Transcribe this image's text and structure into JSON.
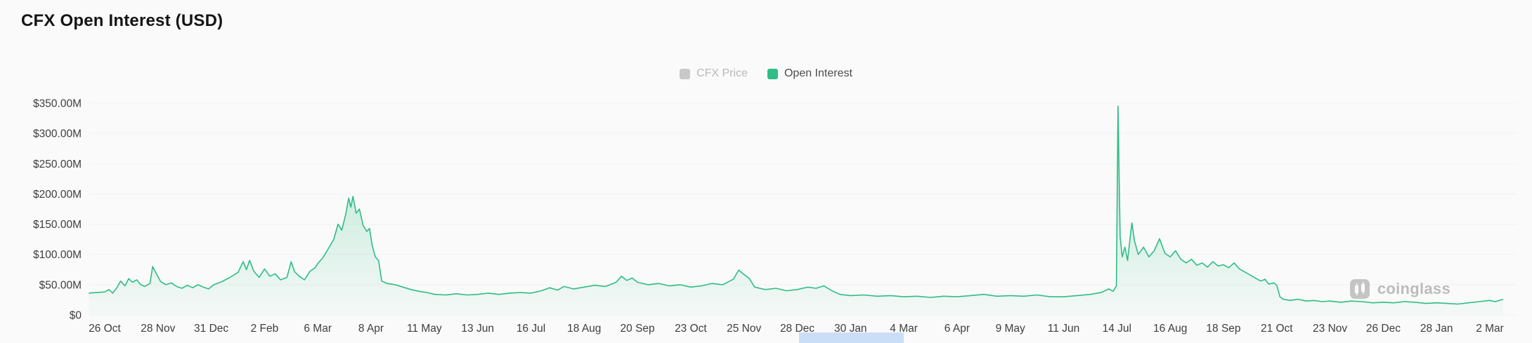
{
  "page": {
    "title": "CFX Open Interest (USD)"
  },
  "legend": {
    "items": [
      {
        "label": "CFX Price",
        "color": "#c9c9c9",
        "text_color": "#b9b9b9",
        "active": false
      },
      {
        "label": "Open Interest",
        "color": "#2ebd85",
        "text_color": "#4d4d4d",
        "active": true
      }
    ]
  },
  "watermark": {
    "label": "coinglass"
  },
  "chart_data": {
    "type": "area",
    "title": "CFX Open Interest (USD)",
    "xlabel": "",
    "ylabel": "Open Interest (USD)",
    "ylim": [
      0,
      350
    ],
    "grid": false,
    "legend_position": "top-center",
    "legend_entries": [
      "CFX Price",
      "Open Interest"
    ],
    "y_ticks": [
      "$350.00M",
      "$300.00M",
      "$250.00M",
      "$200.00M",
      "$150.00M",
      "$100.00M",
      "$50.00M",
      "$0"
    ],
    "y_tick_values": [
      350,
      300,
      250,
      200,
      150,
      100,
      50,
      0
    ],
    "categories": [
      "26 Oct",
      "28 Nov",
      "31 Dec",
      "2 Feb",
      "6 Mar",
      "8 Apr",
      "11 May",
      "13 Jun",
      "16 Jul",
      "18 Aug",
      "20 Sep",
      "23 Oct",
      "25 Nov",
      "28 Dec",
      "30 Jan",
      "4 Mar",
      "6 Apr",
      "9 May",
      "11 Jun",
      "14 Jul",
      "16 Aug",
      "18 Sep",
      "21 Oct",
      "23 Nov",
      "26 Dec",
      "28 Jan",
      "2 Mar"
    ],
    "x_unit": "tick_index",
    "value_unit": "USD millions",
    "series": [
      {
        "name": "Open Interest",
        "color": "#2ebd85",
        "points": [
          [
            -0.3,
            36
          ],
          [
            0,
            38
          ],
          [
            0.08,
            42
          ],
          [
            0.15,
            36
          ],
          [
            0.22,
            44
          ],
          [
            0.3,
            56
          ],
          [
            0.38,
            48
          ],
          [
            0.45,
            60
          ],
          [
            0.52,
            54
          ],
          [
            0.6,
            58
          ],
          [
            0.68,
            50
          ],
          [
            0.75,
            47
          ],
          [
            0.85,
            52
          ],
          [
            0.9,
            80
          ],
          [
            0.97,
            68
          ],
          [
            1.05,
            55
          ],
          [
            1.15,
            50
          ],
          [
            1.25,
            53
          ],
          [
            1.35,
            47
          ],
          [
            1.45,
            44
          ],
          [
            1.55,
            49
          ],
          [
            1.65,
            45
          ],
          [
            1.75,
            50
          ],
          [
            1.85,
            46
          ],
          [
            1.95,
            43
          ],
          [
            2.05,
            50
          ],
          [
            2.2,
            55
          ],
          [
            2.35,
            62
          ],
          [
            2.5,
            70
          ],
          [
            2.6,
            88
          ],
          [
            2.66,
            75
          ],
          [
            2.72,
            90
          ],
          [
            2.8,
            72
          ],
          [
            2.9,
            62
          ],
          [
            3,
            76
          ],
          [
            3.1,
            64
          ],
          [
            3.2,
            68
          ],
          [
            3.3,
            58
          ],
          [
            3.42,
            62
          ],
          [
            3.5,
            88
          ],
          [
            3.56,
            72
          ],
          [
            3.65,
            64
          ],
          [
            3.75,
            58
          ],
          [
            3.85,
            72
          ],
          [
            3.95,
            78
          ],
          [
            4,
            85
          ],
          [
            4.1,
            95
          ],
          [
            4.2,
            110
          ],
          [
            4.3,
            125
          ],
          [
            4.38,
            150
          ],
          [
            4.45,
            140
          ],
          [
            4.52,
            165
          ],
          [
            4.58,
            193
          ],
          [
            4.62,
            178
          ],
          [
            4.66,
            196
          ],
          [
            4.72,
            168
          ],
          [
            4.78,
            175
          ],
          [
            4.85,
            148
          ],
          [
            4.92,
            138
          ],
          [
            4.97,
            143
          ],
          [
            5.02,
            115
          ],
          [
            5.08,
            96
          ],
          [
            5.14,
            90
          ],
          [
            5.2,
            56
          ],
          [
            5.3,
            52
          ],
          [
            5.45,
            50
          ],
          [
            5.6,
            46
          ],
          [
            5.75,
            42
          ],
          [
            5.9,
            39
          ],
          [
            6.05,
            37
          ],
          [
            6.2,
            34
          ],
          [
            6.4,
            33
          ],
          [
            6.6,
            35
          ],
          [
            6.8,
            33
          ],
          [
            7,
            34
          ],
          [
            7.2,
            36
          ],
          [
            7.4,
            34
          ],
          [
            7.6,
            36
          ],
          [
            7.8,
            37
          ],
          [
            8,
            36
          ],
          [
            8.2,
            40
          ],
          [
            8.35,
            45
          ],
          [
            8.5,
            41
          ],
          [
            8.62,
            47
          ],
          [
            8.8,
            43
          ],
          [
            9,
            46
          ],
          [
            9.2,
            49
          ],
          [
            9.4,
            47
          ],
          [
            9.6,
            54
          ],
          [
            9.7,
            64
          ],
          [
            9.8,
            57
          ],
          [
            9.9,
            61
          ],
          [
            10,
            54
          ],
          [
            10.2,
            50
          ],
          [
            10.4,
            52
          ],
          [
            10.6,
            48
          ],
          [
            10.8,
            50
          ],
          [
            11,
            46
          ],
          [
            11.2,
            48
          ],
          [
            11.4,
            52
          ],
          [
            11.6,
            50
          ],
          [
            11.8,
            59
          ],
          [
            11.9,
            74
          ],
          [
            12,
            67
          ],
          [
            12.1,
            60
          ],
          [
            12.2,
            46
          ],
          [
            12.4,
            42
          ],
          [
            12.6,
            44
          ],
          [
            12.8,
            40
          ],
          [
            13,
            42
          ],
          [
            13.2,
            46
          ],
          [
            13.35,
            44
          ],
          [
            13.5,
            48
          ],
          [
            13.65,
            40
          ],
          [
            13.8,
            34
          ],
          [
            14,
            32
          ],
          [
            14.25,
            33
          ],
          [
            14.5,
            31
          ],
          [
            14.75,
            32
          ],
          [
            15,
            30
          ],
          [
            15.25,
            31
          ],
          [
            15.5,
            29
          ],
          [
            15.75,
            31
          ],
          [
            16,
            30
          ],
          [
            16.25,
            32
          ],
          [
            16.5,
            34
          ],
          [
            16.75,
            31
          ],
          [
            17,
            32
          ],
          [
            17.25,
            31
          ],
          [
            17.5,
            33
          ],
          [
            17.75,
            30
          ],
          [
            18,
            30
          ],
          [
            18.25,
            32
          ],
          [
            18.5,
            34
          ],
          [
            18.7,
            37
          ],
          [
            18.85,
            43
          ],
          [
            18.93,
            39
          ],
          [
            18.99,
            48
          ],
          [
            19.02,
            345
          ],
          [
            19.06,
            130
          ],
          [
            19.1,
            96
          ],
          [
            19.15,
            112
          ],
          [
            19.2,
            90
          ],
          [
            19.28,
            152
          ],
          [
            19.33,
            122
          ],
          [
            19.4,
            100
          ],
          [
            19.5,
            112
          ],
          [
            19.6,
            96
          ],
          [
            19.7,
            106
          ],
          [
            19.8,
            126
          ],
          [
            19.9,
            102
          ],
          [
            20,
            96
          ],
          [
            20.1,
            106
          ],
          [
            20.2,
            92
          ],
          [
            20.3,
            86
          ],
          [
            20.4,
            92
          ],
          [
            20.5,
            82
          ],
          [
            20.6,
            86
          ],
          [
            20.7,
            79
          ],
          [
            20.8,
            88
          ],
          [
            20.9,
            81
          ],
          [
            21,
            83
          ],
          [
            21.1,
            78
          ],
          [
            21.2,
            86
          ],
          [
            21.3,
            76
          ],
          [
            21.4,
            71
          ],
          [
            21.5,
            66
          ],
          [
            21.6,
            61
          ],
          [
            21.7,
            56
          ],
          [
            21.78,
            59
          ],
          [
            21.85,
            51
          ],
          [
            21.95,
            53
          ],
          [
            22,
            49
          ],
          [
            22.06,
            30
          ],
          [
            22.12,
            26
          ],
          [
            22.25,
            24
          ],
          [
            22.4,
            26
          ],
          [
            22.55,
            23
          ],
          [
            22.7,
            24
          ],
          [
            22.85,
            22
          ],
          [
            23,
            23
          ],
          [
            23.2,
            21
          ],
          [
            23.4,
            23
          ],
          [
            23.6,
            22
          ],
          [
            23.8,
            20
          ],
          [
            24,
            21
          ],
          [
            24.2,
            20
          ],
          [
            24.4,
            22
          ],
          [
            24.6,
            21
          ],
          [
            24.8,
            19
          ],
          [
            25,
            20
          ],
          [
            25.2,
            19
          ],
          [
            25.4,
            18
          ],
          [
            25.6,
            20
          ],
          [
            25.8,
            22
          ],
          [
            26,
            24
          ],
          [
            26.1,
            22
          ],
          [
            26.25,
            26
          ]
        ]
      }
    ]
  }
}
